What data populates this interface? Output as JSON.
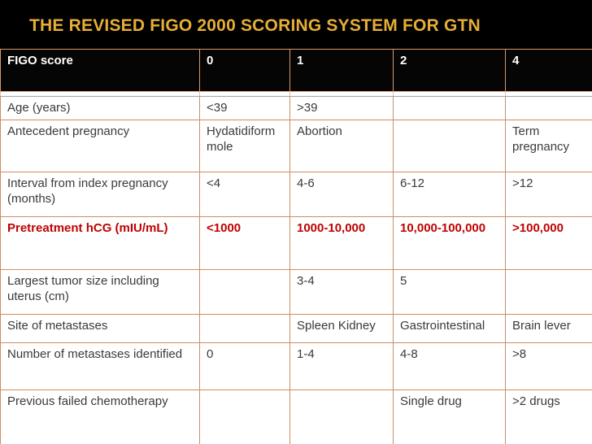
{
  "slide": {
    "title": "THE REVISED FIGO 2000 SCORING SYSTEM FOR GTN"
  },
  "table": {
    "columns": [
      "FIGO score",
      "0",
      "1",
      "2",
      "4"
    ],
    "rows": [
      {
        "label": "Age (years)",
        "values": [
          "<39",
          ">39",
          "",
          ""
        ],
        "highlight": false
      },
      {
        "label": "Antecedent pregnancy",
        "values": [
          "Hydatidiform mole",
          "Abortion",
          "",
          "Term pregnancy"
        ],
        "highlight": false
      },
      {
        "label": "Interval from index pregnancy (months)",
        "values": [
          "<4",
          "4-6",
          "6-12",
          ">12"
        ],
        "highlight": false
      },
      {
        "label": "Pretreatment hCG (mIU/mL)",
        "values": [
          "<1000",
          "1000-10,000",
          "10,000-100,000",
          ">100,000"
        ],
        "highlight": true
      },
      {
        "label": "Largest tumor size including uterus (cm)",
        "values": [
          "",
          "3-4",
          "5",
          ""
        ],
        "highlight": false
      },
      {
        "label": "Site of metastases",
        "values": [
          "",
          "Spleen Kidney",
          "Gastrointestinal",
          "Brain lever"
        ],
        "highlight": false
      },
      {
        "label": "Number of metastases identified",
        "values": [
          "0",
          "1-4",
          "4-8",
          ">8"
        ],
        "highlight": false
      },
      {
        "label": "Previous failed chemotherapy",
        "values": [
          "",
          "",
          "Single drug",
          ">2 drugs"
        ],
        "highlight": false
      }
    ]
  },
  "colors": {
    "slide_background": "#000000",
    "title_text": "#E7AE35",
    "header_background": "#050505",
    "header_text": "#FFFFFF",
    "cell_border": "#CC8E60",
    "header_border": "#D9996B",
    "gray_rule": "#A3A3A3",
    "body_text": "#3A3A3A",
    "highlight_text": "#C00000"
  }
}
